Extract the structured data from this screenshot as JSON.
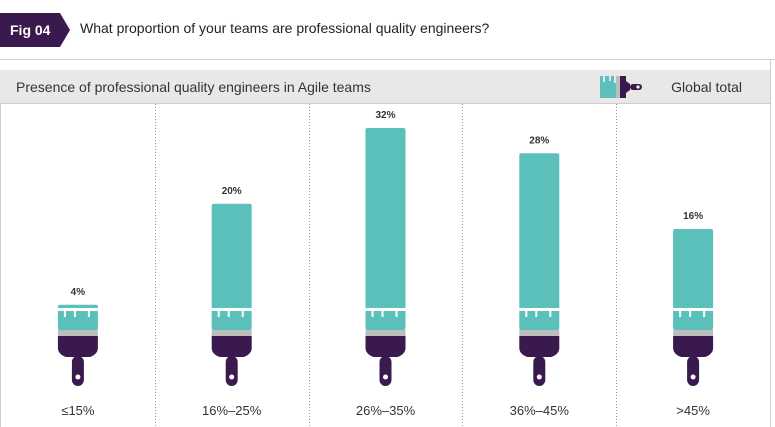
{
  "figure": {
    "tag": "Fig 04",
    "question": "What proportion of your teams are professional quality engineers?"
  },
  "subtitle": "Presence of professional quality engineers in Agile teams",
  "legend": {
    "label": "Global total",
    "icon": "paintbrush-icon"
  },
  "colors": {
    "bar": "#5bbfba",
    "brush_dark": "#3a1a4e",
    "ferrule": "#bdbdbd",
    "fig_tag_bg": "#3a1a4e",
    "subheader_bg": "#e8e8e8"
  },
  "chart_data": {
    "type": "bar",
    "categories": [
      "≤15%",
      "16%–25%",
      "26%–35%",
      "36%–45%",
      ">45%"
    ],
    "series": [
      {
        "name": "Global total",
        "values": [
          4,
          20,
          32,
          28,
          16
        ]
      }
    ],
    "data_labels": [
      "4%",
      "20%",
      "32%",
      "28%",
      "16%"
    ],
    "title": "Presence of professional quality engineers in Agile teams",
    "xlabel": "",
    "ylabel": "",
    "ylim": [
      0,
      32
    ],
    "grid": false,
    "legend_position": "top-right"
  }
}
